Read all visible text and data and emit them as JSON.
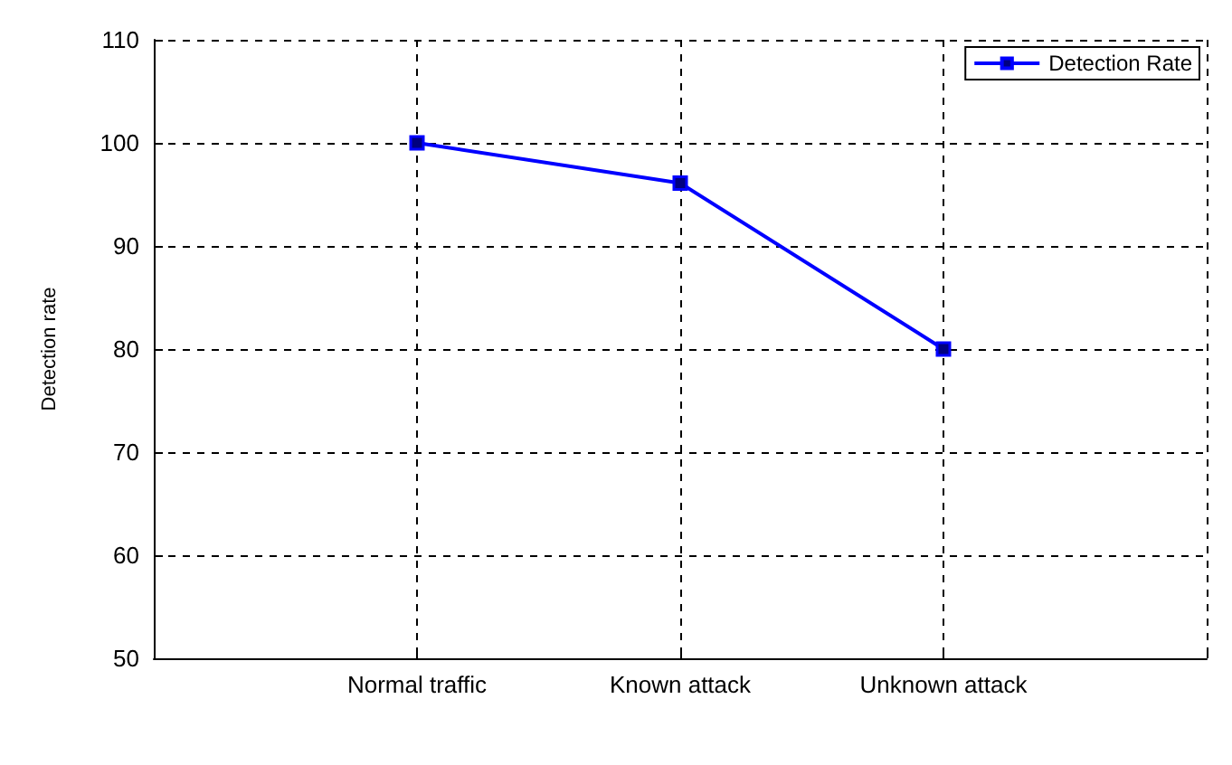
{
  "chart_data": {
    "type": "line",
    "ylabel": "Detection rate",
    "categories": [
      null,
      "Normal traffic",
      "Known attack",
      "Unknown attack",
      null
    ],
    "series": [
      {
        "name": "Detection Rate",
        "color": "#0000ff",
        "values": [
          null,
          100,
          96.1,
          80,
          null
        ]
      }
    ],
    "ylim": [
      50,
      110
    ],
    "yticks": [
      50,
      60,
      70,
      80,
      90,
      100,
      110
    ],
    "grid": true,
    "legend": "top right",
    "marker": "square",
    "line_style": "solid"
  }
}
